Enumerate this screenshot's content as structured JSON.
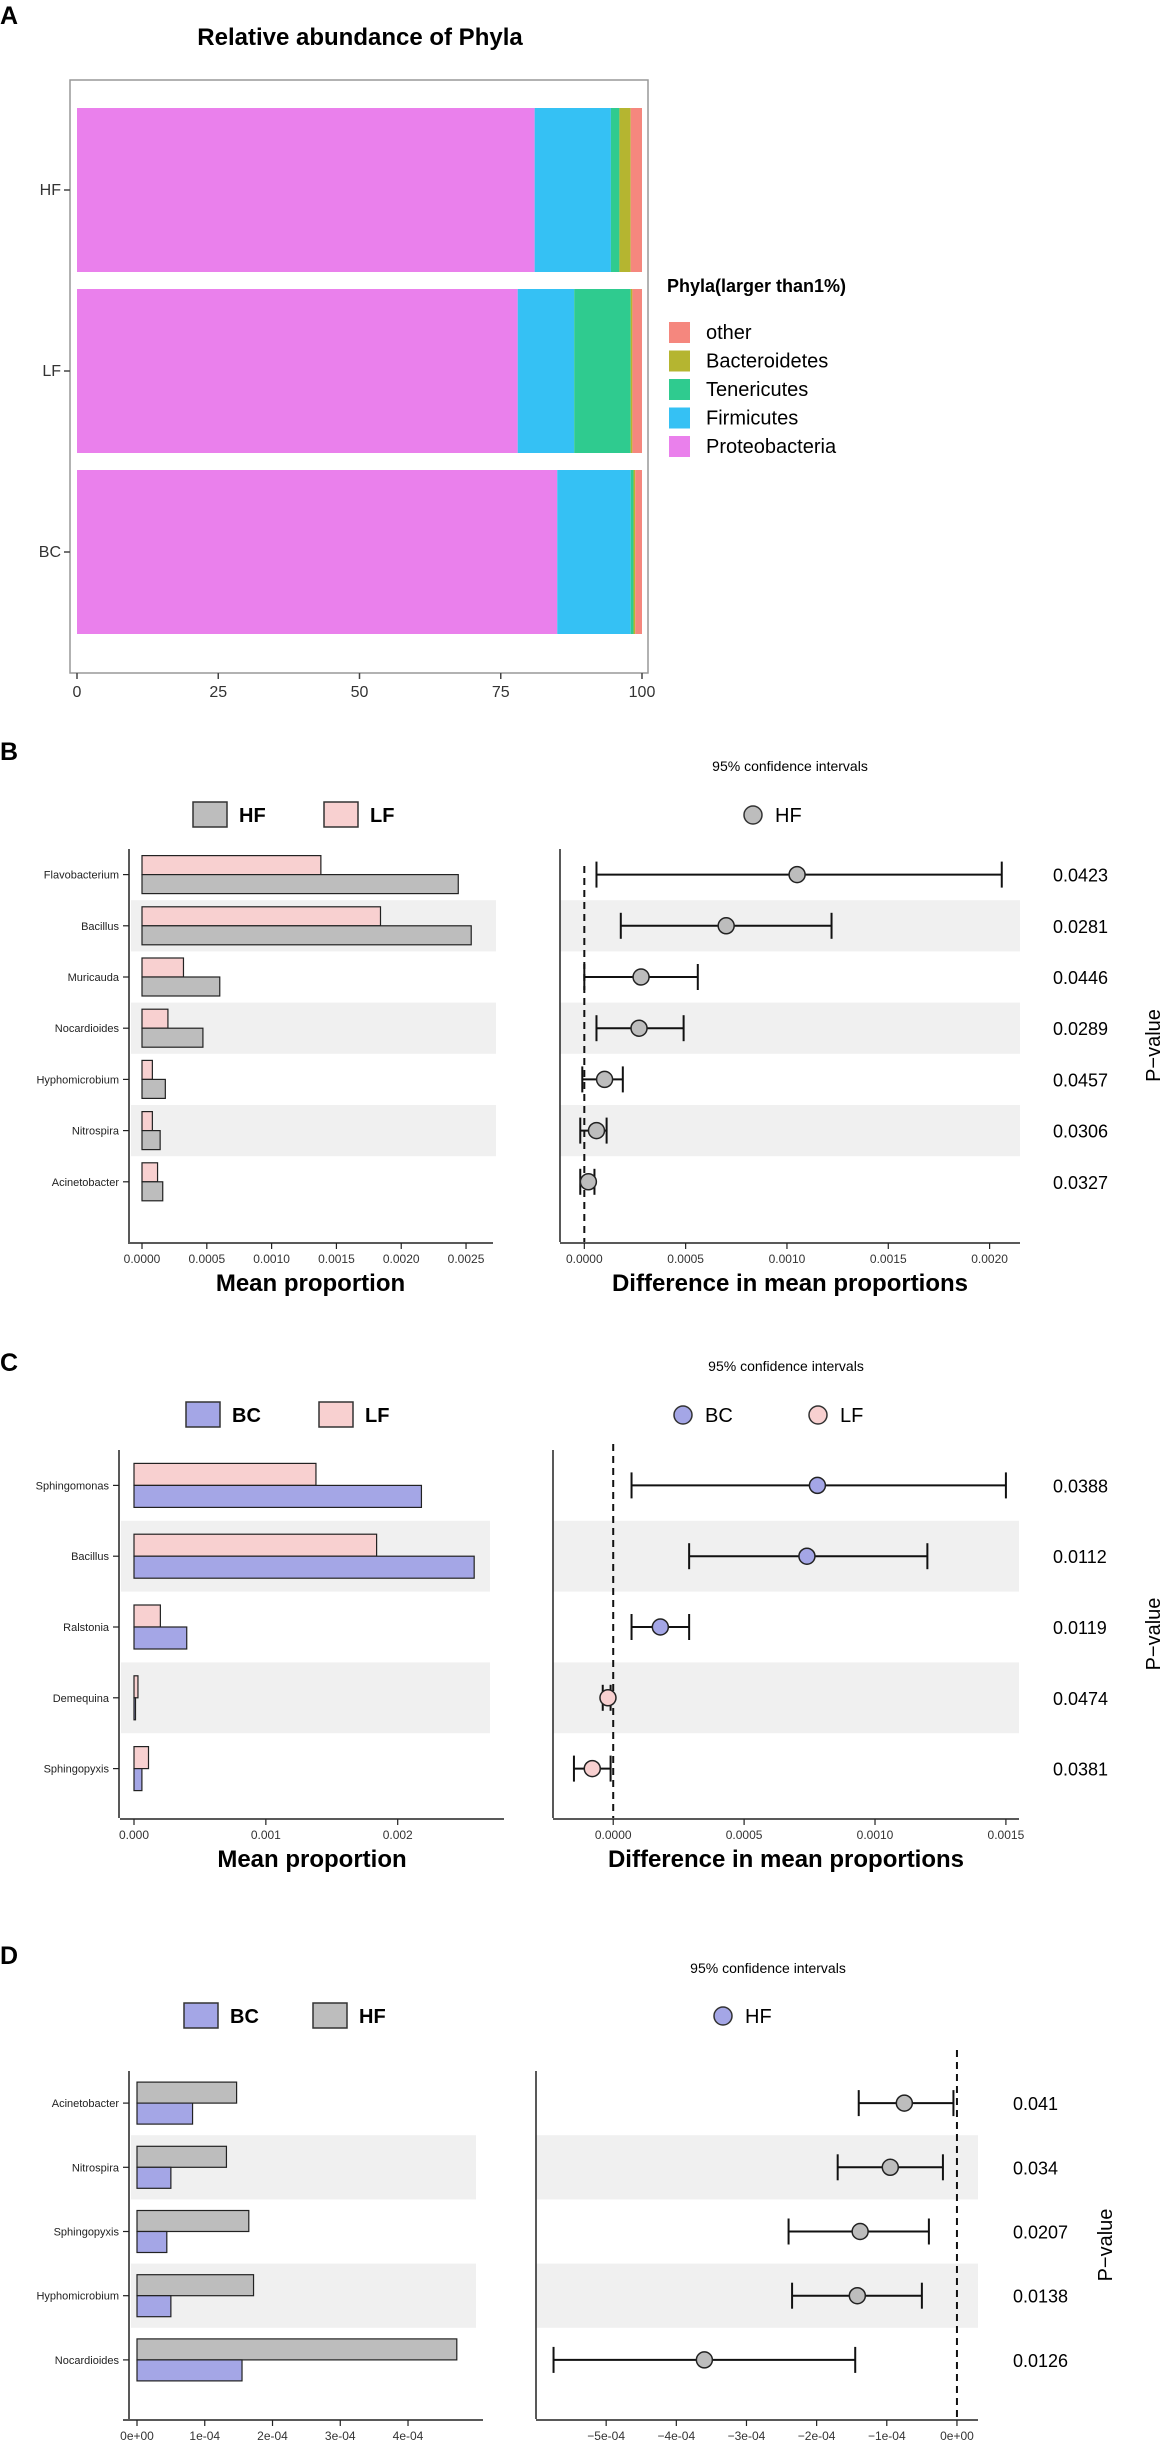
{
  "chart_data": [
    {
      "panel": "A",
      "type": "bar",
      "orientation": "horizontal",
      "stacked": true,
      "title": "Relative abundance of Phyla",
      "categories": [
        "HF",
        "LF",
        "BC"
      ],
      "legend_title": "Phyla(larger than1%)",
      "legend_placement": "right",
      "xlim": [
        0,
        100
      ],
      "xticks": [
        "0",
        "25",
        "50",
        "75",
        "100"
      ],
      "colors": {
        "Proteobacteria": "#ea80ec",
        "Firmicutes": "#35c1f4",
        "Tenericutes": "#2fcb8f",
        "Bacteroidetes": "#b5b530",
        "other": "#f5877e"
      },
      "series": [
        {
          "name": "Proteobacteria",
          "values": [
            81,
            78,
            85
          ]
        },
        {
          "name": "Firmicutes",
          "values": [
            13.5,
            10,
            13
          ]
        },
        {
          "name": "Tenericutes",
          "values": [
            1.5,
            10,
            0.5
          ]
        },
        {
          "name": "Bacteroidetes",
          "values": [
            2,
            0.3,
            0.3
          ]
        },
        {
          "name": "other",
          "values": [
            2,
            1.7,
            1.2
          ]
        }
      ],
      "legend_order": [
        "other",
        "Bacteroidetes",
        "Tenericutes",
        "Firmicutes",
        "Proteobacteria"
      ]
    },
    {
      "panel": "B",
      "type": "bar+errorbar",
      "groups": [
        {
          "name": "HF",
          "color": "#bdbdbd"
        },
        {
          "name": "LF",
          "color": "#f8d0d0"
        }
      ],
      "ci_title": "95% confidence intervals",
      "ci_legend": [
        {
          "name": "HF",
          "color": "#bdbdbd"
        }
      ],
      "categories": [
        "Flavobacterium",
        "Bacillus",
        "Muricauda",
        "Nocardioides",
        "Hyphomicrobium",
        "Nitrospira",
        "Acinetobacter"
      ],
      "mean_proportion": {
        "LF": [
          0.00138,
          0.00184,
          0.00032,
          0.0002,
          8e-05,
          8e-05,
          0.00012
        ],
        "HF": [
          0.00244,
          0.00254,
          0.0006,
          0.00047,
          0.00018,
          0.00014,
          0.00016
        ]
      },
      "xlabel_left": "Mean proportion",
      "xlim_left": [
        0,
        0.0026
      ],
      "xticks_left": [
        {
          "v": 0,
          "label": "0.0000"
        },
        {
          "v": 0.0005,
          "label": "0.0005"
        },
        {
          "v": 0.001,
          "label": "0.0010"
        },
        {
          "v": 0.0015,
          "label": "0.0015"
        },
        {
          "v": 0.002,
          "label": "0.0020"
        },
        {
          "v": 0.0025,
          "label": "0.0025"
        }
      ],
      "difference": [
        0.00105,
        0.0007,
        0.00028,
        0.00027,
        0.0001,
        6e-05,
        2e-05
      ],
      "ci_low": [
        6e-05,
        0.00018,
        0.0,
        6e-05,
        -1e-05,
        -2e-05,
        -2e-05
      ],
      "ci_high": [
        0.00206,
        0.00122,
        0.00056,
        0.00049,
        0.00019,
        0.00011,
        5e-05
      ],
      "point_group": [
        "HF",
        "HF",
        "HF",
        "HF",
        "HF",
        "HF",
        "HF"
      ],
      "xlabel_right": "Difference in mean proportions",
      "xlim_right": [
        -0.00012,
        0.00215
      ],
      "xticks_right": [
        {
          "v": 0,
          "label": "0.0000"
        },
        {
          "v": 0.0005,
          "label": "0.0005"
        },
        {
          "v": 0.001,
          "label": "0.0010"
        },
        {
          "v": 0.0015,
          "label": "0.0015"
        },
        {
          "v": 0.002,
          "label": "0.0020"
        }
      ],
      "p_values": [
        "0.0423",
        "0.0281",
        "0.0446",
        "0.0289",
        "0.0457",
        "0.0306",
        "0.0327"
      ],
      "p_axis_label": "P−value"
    },
    {
      "panel": "C",
      "type": "bar+errorbar",
      "groups": [
        {
          "name": "BC",
          "color": "#a4a6e6"
        },
        {
          "name": "LF",
          "color": "#f8d0d0"
        }
      ],
      "ci_title": "95% confidence intervals",
      "ci_legend": [
        {
          "name": "BC",
          "color": "#a4a6e6"
        },
        {
          "name": "LF",
          "color": "#f8d0d0"
        }
      ],
      "categories": [
        "Sphingomonas",
        "Bacillus",
        "Ralstonia",
        "Demequina",
        "Sphingopyxis"
      ],
      "mean_proportion": {
        "LF": [
          0.00138,
          0.00184,
          0.0002,
          3e-05,
          0.00011
        ],
        "BC": [
          0.00218,
          0.00258,
          0.0004,
          0.0,
          6e-05
        ]
      },
      "xlabel_left": "Mean proportion",
      "xlim_left": [
        0,
        0.0027
      ],
      "xticks_left": [
        {
          "v": 0,
          "label": "0.000"
        },
        {
          "v": 0.001,
          "label": "0.001"
        },
        {
          "v": 0.002,
          "label": "0.002"
        }
      ],
      "difference": [
        0.00078,
        0.00074,
        0.00018,
        -2e-05,
        -8e-05
      ],
      "ci_low": [
        7e-05,
        0.00029,
        7e-05,
        -4e-05,
        -0.00015
      ],
      "ci_high": [
        0.0015,
        0.0012,
        0.00029,
        -1e-05,
        -1e-05
      ],
      "point_group": [
        "BC",
        "BC",
        "BC",
        "LF",
        "LF"
      ],
      "xlabel_right": "Difference in mean proportions",
      "xlim_right": [
        -0.00023,
        0.00155
      ],
      "xticks_right": [
        {
          "v": 0,
          "label": "0.0000"
        },
        {
          "v": 0.0005,
          "label": "0.0005"
        },
        {
          "v": 0.001,
          "label": "0.0010"
        },
        {
          "v": 0.0015,
          "label": "0.0015"
        }
      ],
      "p_values": [
        "0.0388",
        "0.0112",
        "0.0119",
        "0.0474",
        "0.0381"
      ],
      "p_axis_label": "P−value"
    },
    {
      "panel": "D",
      "type": "bar+errorbar",
      "groups": [
        {
          "name": "BC",
          "color": "#a4a6e6"
        },
        {
          "name": "HF",
          "color": "#bdbdbd"
        }
      ],
      "ci_title": "95% confidence intervals",
      "ci_legend": [
        {
          "name": "HF",
          "color": "#a4a6e6"
        }
      ],
      "categories": [
        "Acinetobacter",
        "Nitrospira",
        "Sphingopyxis",
        "Hyphomicrobium",
        "Nocardioides"
      ],
      "mean_proportion": {
        "HF": [
          0.000147,
          0.000132,
          0.000165,
          0.000172,
          0.000472
        ],
        "BC": [
          8.2e-05,
          5e-05,
          4.4e-05,
          5e-05,
          0.000155
        ]
      },
      "xlabel_left": "Mean proportion",
      "xlim_left": [
        0,
        0.00049
      ],
      "xticks_left": [
        {
          "v": 0,
          "label": "0e+00"
        },
        {
          "v": 0.0001,
          "label": "1e-04"
        },
        {
          "v": 0.0002,
          "label": "2e-04"
        },
        {
          "v": 0.0003,
          "label": "3e-04"
        },
        {
          "v": 0.0004,
          "label": "4e-04"
        }
      ],
      "difference": [
        -7.5e-05,
        -9.5e-05,
        -0.000138,
        -0.000142,
        -0.00036
      ],
      "ci_low": [
        -0.00014,
        -0.00017,
        -0.00024,
        -0.000235,
        -0.000575
      ],
      "ci_high": [
        -5e-06,
        -2e-05,
        -4e-05,
        -5e-05,
        -0.000145
      ],
      "point_group": [
        "HF",
        "HF",
        "HF",
        "HF",
        "HF"
      ],
      "xlabel_right": "Difference in mean proportions",
      "xlim_right": [
        -0.0006,
        3e-05
      ],
      "xticks_right": [
        {
          "v": -0.0005,
          "label": "−5e-04"
        },
        {
          "v": -0.0004,
          "label": "−4e-04"
        },
        {
          "v": -0.0003,
          "label": "−3e-04"
        },
        {
          "v": -0.0002,
          "label": "−2e-04"
        },
        {
          "v": -0.0001,
          "label": "−1e-04"
        },
        {
          "v": 0,
          "label": "0e+00"
        }
      ],
      "p_values": [
        "0.041",
        "0.034",
        "0.0207",
        "0.0138",
        "0.0126"
      ],
      "p_axis_label": "P−value"
    }
  ]
}
